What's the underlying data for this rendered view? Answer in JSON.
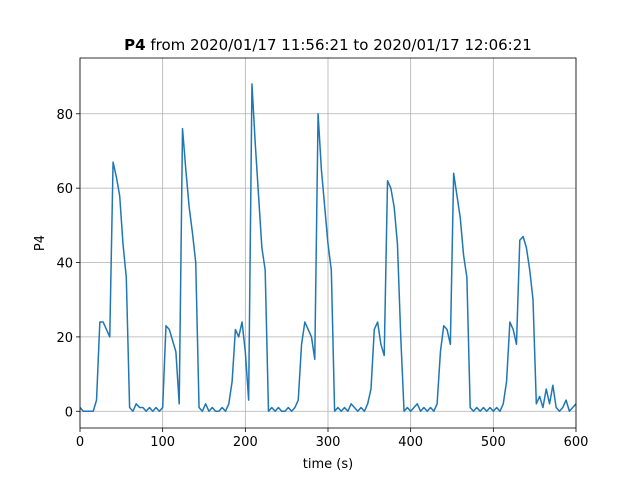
{
  "chart_data": {
    "type": "line",
    "title_variable": "P4",
    "title_rest": "from 2020/01/17 11:56:21 to 2020/01/17 12:06:21",
    "xlabel": "time (s)",
    "ylabel": "P4",
    "xlim": [
      0,
      600
    ],
    "ylim": [
      -4.5,
      95
    ],
    "xticks": [
      0,
      100,
      200,
      300,
      400,
      500,
      600
    ],
    "yticks": [
      0,
      20,
      40,
      60,
      80
    ],
    "grid": true,
    "x": [
      0,
      4,
      8,
      12,
      16,
      20,
      24,
      28,
      32,
      36,
      40,
      44,
      48,
      52,
      56,
      60,
      64,
      68,
      72,
      76,
      80,
      84,
      88,
      92,
      96,
      100,
      104,
      108,
      112,
      116,
      120,
      124,
      128,
      132,
      136,
      140,
      144,
      148,
      152,
      156,
      160,
      164,
      168,
      172,
      176,
      180,
      184,
      188,
      192,
      196,
      200,
      204,
      208,
      212,
      216,
      220,
      224,
      228,
      232,
      236,
      240,
      244,
      248,
      252,
      256,
      260,
      264,
      268,
      272,
      276,
      280,
      284,
      288,
      292,
      296,
      300,
      304,
      308,
      312,
      316,
      320,
      324,
      328,
      332,
      336,
      340,
      344,
      348,
      352,
      356,
      360,
      364,
      368,
      372,
      376,
      380,
      384,
      388,
      392,
      396,
      400,
      404,
      408,
      412,
      416,
      420,
      424,
      428,
      432,
      436,
      440,
      444,
      448,
      452,
      456,
      460,
      464,
      468,
      472,
      476,
      480,
      484,
      488,
      492,
      496,
      500,
      504,
      508,
      512,
      516,
      520,
      524,
      528,
      532,
      536,
      540,
      544,
      548,
      552,
      556,
      560,
      564,
      568,
      572,
      576,
      580,
      584,
      588,
      592,
      596,
      600
    ],
    "series": [
      {
        "color": "#1f77b4",
        "values": [
          1,
          0,
          0,
          0,
          0,
          3,
          24,
          24,
          22,
          20,
          67,
          63,
          58,
          45,
          36,
          1,
          0,
          2,
          1,
          1,
          0,
          1,
          0,
          1,
          0,
          1,
          23,
          22,
          19,
          16,
          2,
          76,
          65,
          55,
          48,
          40,
          1,
          0,
          2,
          0,
          1,
          0,
          0,
          1,
          0,
          2,
          8,
          22,
          20,
          24,
          16,
          3,
          88,
          72,
          58,
          44,
          38,
          0,
          1,
          0,
          1,
          0,
          0,
          1,
          0,
          1,
          3,
          18,
          24,
          22,
          20,
          14,
          80,
          65,
          55,
          45,
          38,
          0,
          1,
          0,
          1,
          0,
          2,
          1,
          0,
          1,
          0,
          2,
          6,
          22,
          24,
          18,
          15,
          62,
          60,
          55,
          45,
          20,
          0,
          1,
          0,
          1,
          2,
          0,
          1,
          0,
          1,
          0,
          2,
          16,
          23,
          22,
          18,
          64,
          58,
          52,
          42,
          36,
          1,
          0,
          1,
          0,
          1,
          0,
          1,
          0,
          1,
          0,
          2,
          8,
          24,
          22,
          18,
          46,
          47,
          44,
          38,
          30,
          2,
          4,
          1,
          6,
          2,
          7,
          1,
          0,
          1,
          3,
          0,
          1,
          2
        ]
      }
    ]
  }
}
